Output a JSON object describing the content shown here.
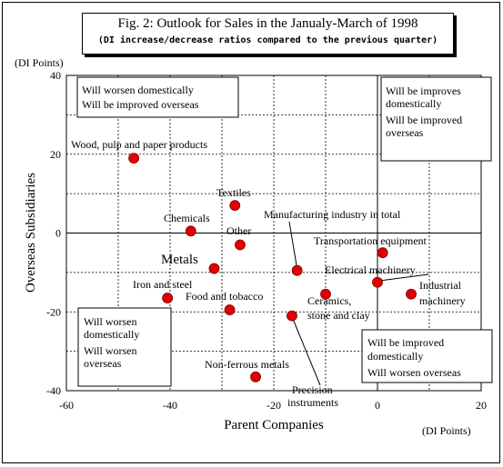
{
  "figure": {
    "title": "Fig. 2: Outlook for Sales in the Janualy-March of 1998",
    "subtitle": "(DI increase/decrease ratios compared to the previous quarter)"
  },
  "chart_data": {
    "type": "scatter",
    "xlabel": "Parent Companies",
    "ylabel": "Overseas Subsidiaries",
    "x_unit": "(DI Points)",
    "y_unit": "(DI Points)",
    "xlim": [
      -60,
      20
    ],
    "ylim": [
      -40,
      40
    ],
    "x_ticks": [
      "-60",
      "-40",
      "-20",
      "0",
      "20"
    ],
    "y_ticks": [
      "40",
      "20",
      "0",
      "-20",
      "-40"
    ],
    "grid": "dashed",
    "marker_color": "#e00000",
    "points": [
      {
        "label": "Wood, pulp and paper products",
        "x": -47,
        "y": 19
      },
      {
        "label": "Textiles",
        "x": -27.5,
        "y": 7
      },
      {
        "label": "Chemicals",
        "x": -36,
        "y": 0.5
      },
      {
        "label": "Other",
        "x": -26.5,
        "y": -3
      },
      {
        "label": "Manufacturing industry in total",
        "x": -15.5,
        "y": -9.5
      },
      {
        "label": "Metals",
        "x": -31.5,
        "y": -9
      },
      {
        "label": "Iron and steel",
        "x": -40.5,
        "y": -16.5
      },
      {
        "label": "Food and tobacco",
        "x": -28.5,
        "y": -19.5
      },
      {
        "label": "Transportation equipment",
        "x": 1,
        "y": -5
      },
      {
        "label": "Electrical machinery",
        "x": 0,
        "y": -12.5
      },
      {
        "label": "Industrial machinery",
        "x": 6.5,
        "y": -15.5
      },
      {
        "label": "Ceramics, stone and clay",
        "x": -10,
        "y": -15.5
      },
      {
        "label": "Precision instruments",
        "x": -16.5,
        "y": -21
      },
      {
        "label": "Non-ferrous metals",
        "x": -23.5,
        "y": -36.5
      }
    ],
    "quadrant_notes": {
      "top_left": [
        "Will worsen domestically",
        "Will be improved overseas"
      ],
      "top_right": [
        "Will be improves",
        "domestically",
        "Will be improved",
        "overseas"
      ],
      "bottom_left": [
        "Will worsen",
        "domestically",
        "Will worsen",
        "overseas"
      ],
      "bottom_right": [
        "Will be improved",
        "domestically",
        "Will worsen overseas"
      ]
    }
  }
}
